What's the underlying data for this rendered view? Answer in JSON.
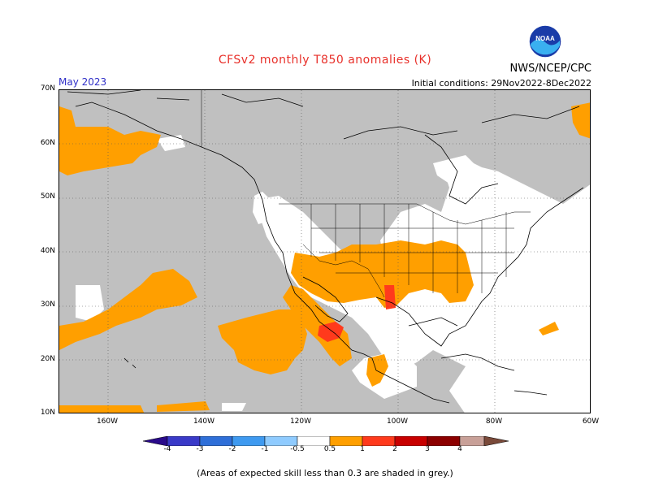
{
  "title": "CFSv2 monthly T850 anomalies (K)",
  "organization": "NWS/NCEP/CPC",
  "logo_text": "NOAA",
  "month": "May 2023",
  "initial_conditions": "Initial conditions: 29Nov2022-8Dec2022",
  "note": "(Areas of expected skill less than 0.3 are shaded in grey.)",
  "map": {
    "lat_labels": [
      "70N",
      "60N",
      "50N",
      "40N",
      "30N",
      "20N",
      "10N"
    ],
    "lon_labels": [
      "160W",
      "140W",
      "120W",
      "100W",
      "80W",
      "60W"
    ],
    "lat_range": [
      10,
      70
    ],
    "lon_range": [
      -170,
      -60
    ],
    "colors": {
      "grey": "#c0c0c0",
      "orange": "#ff9f00",
      "red_orange": "#ff3a1c",
      "white": "#ffffff",
      "land_line": "#000000"
    }
  },
  "colorbar": {
    "labels": [
      "-4",
      "-3",
      "-2",
      "-1",
      "-0.5",
      "0.5",
      "1",
      "2",
      "3",
      "4"
    ],
    "colors": [
      "#2a0a8a",
      "#3a3ac8",
      "#2f6fd8",
      "#3f9af0",
      "#8fcbff",
      "#ffffff",
      "#ff9f00",
      "#ff3a1c",
      "#c80000",
      "#8c0000",
      "#c8a098",
      "#7a4a3a"
    ]
  }
}
